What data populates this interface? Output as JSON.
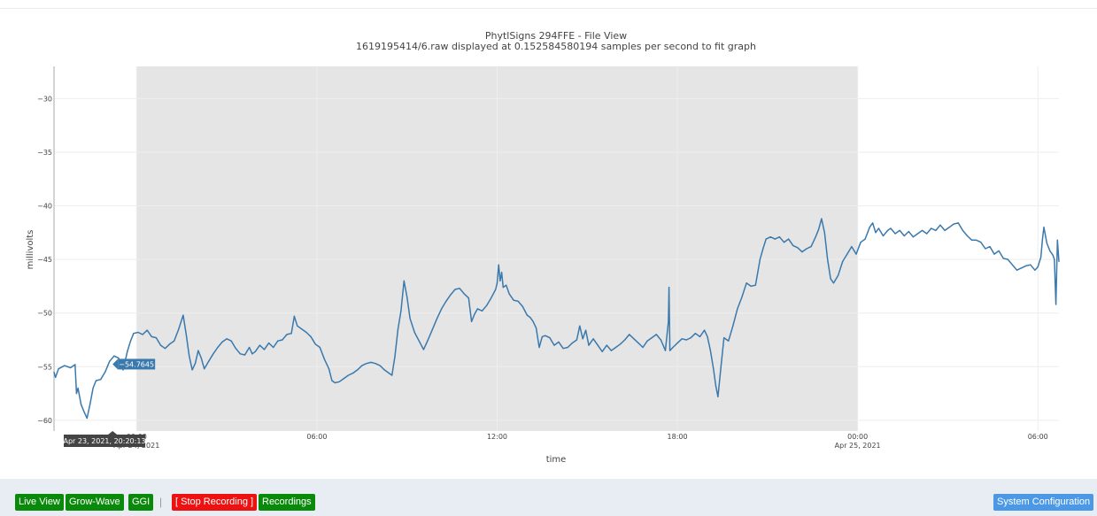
{
  "chart_data": {
    "type": "line",
    "title": "PhytlSigns 294FFE - File View",
    "subtitle": "1619195414/6.raw displayed at 0.152584580194 samples per second to fit graph",
    "xlabel": "time",
    "ylabel": "millivolts",
    "ylim": [
      -61,
      -27
    ],
    "y_ticks": [
      -30,
      -35,
      -40,
      -45,
      -50,
      -55,
      -60
    ],
    "y_tick_labels": [
      "−30",
      "−35",
      "−40",
      "−45",
      "−50",
      "−55",
      "−60"
    ],
    "x_ticks": [
      {
        "hour": 0,
        "label": "00:00",
        "sublabel": "Apr 24, 2021"
      },
      {
        "hour": 6,
        "label": "06:00",
        "sublabel": ""
      },
      {
        "hour": 12,
        "label": "12:00",
        "sublabel": ""
      },
      {
        "hour": 18,
        "label": "18:00",
        "sublabel": ""
      },
      {
        "hour": 24,
        "label": "00:00",
        "sublabel": "Apr 25, 2021"
      },
      {
        "hour": 30,
        "label": "06:00",
        "sublabel": ""
      }
    ],
    "x_units": "hours relative to 00:00 Apr 24, 2021",
    "xlim": [
      -2.75,
      30.7
    ],
    "shaded_region": [
      0,
      24
    ],
    "grid": true,
    "series": [
      {
        "color": "#3a79ad",
        "points": [
          [
            -2.75,
            -55.5
          ],
          [
            -2.7,
            -56.0
          ],
          [
            -2.6,
            -55.2
          ],
          [
            -2.4,
            -54.9
          ],
          [
            -2.2,
            -55.1
          ],
          [
            -2.05,
            -54.8
          ],
          [
            -2.0,
            -57.5
          ],
          [
            -1.95,
            -57.0
          ],
          [
            -1.85,
            -58.5
          ],
          [
            -1.75,
            -59.2
          ],
          [
            -1.65,
            -59.8
          ],
          [
            -1.55,
            -58.5
          ],
          [
            -1.45,
            -57.0
          ],
          [
            -1.35,
            -56.3
          ],
          [
            -1.2,
            -56.2
          ],
          [
            -1.05,
            -55.5
          ],
          [
            -0.9,
            -54.5
          ],
          [
            -0.75,
            -54.0
          ],
          [
            -0.6,
            -54.2
          ],
          [
            -0.45,
            -55.3
          ],
          [
            -0.3,
            -53.5
          ],
          [
            -0.2,
            -52.6
          ],
          [
            -0.1,
            -51.9
          ],
          [
            0.05,
            -51.8
          ],
          [
            0.2,
            -52.0
          ],
          [
            0.35,
            -51.6
          ],
          [
            0.5,
            -52.2
          ],
          [
            0.65,
            -52.3
          ],
          [
            0.8,
            -53.0
          ],
          [
            0.95,
            -53.3
          ],
          [
            1.1,
            -52.9
          ],
          [
            1.25,
            -52.6
          ],
          [
            1.4,
            -51.5
          ],
          [
            1.55,
            -50.2
          ],
          [
            1.65,
            -52.0
          ],
          [
            1.75,
            -54.0
          ],
          [
            1.85,
            -55.3
          ],
          [
            1.95,
            -54.7
          ],
          [
            2.05,
            -53.5
          ],
          [
            2.15,
            -54.2
          ],
          [
            2.25,
            -55.2
          ],
          [
            2.4,
            -54.5
          ],
          [
            2.55,
            -53.8
          ],
          [
            2.7,
            -53.2
          ],
          [
            2.85,
            -52.7
          ],
          [
            3.0,
            -52.4
          ],
          [
            3.15,
            -52.6
          ],
          [
            3.3,
            -53.3
          ],
          [
            3.45,
            -53.8
          ],
          [
            3.6,
            -53.9
          ],
          [
            3.75,
            -53.2
          ],
          [
            3.85,
            -53.8
          ],
          [
            3.95,
            -53.6
          ],
          [
            4.1,
            -53.0
          ],
          [
            4.25,
            -53.4
          ],
          [
            4.4,
            -52.8
          ],
          [
            4.55,
            -53.2
          ],
          [
            4.7,
            -52.6
          ],
          [
            4.85,
            -52.5
          ],
          [
            5.0,
            -52.0
          ],
          [
            5.15,
            -51.9
          ],
          [
            5.25,
            -50.3
          ],
          [
            5.35,
            -51.2
          ],
          [
            5.5,
            -51.5
          ],
          [
            5.65,
            -51.8
          ],
          [
            5.8,
            -52.2
          ],
          [
            5.95,
            -52.9
          ],
          [
            6.1,
            -53.2
          ],
          [
            6.25,
            -54.3
          ],
          [
            6.4,
            -55.2
          ],
          [
            6.5,
            -56.3
          ],
          [
            6.6,
            -56.5
          ],
          [
            6.75,
            -56.4
          ],
          [
            6.9,
            -56.1
          ],
          [
            7.05,
            -55.8
          ],
          [
            7.2,
            -55.6
          ],
          [
            7.35,
            -55.3
          ],
          [
            7.5,
            -54.9
          ],
          [
            7.65,
            -54.7
          ],
          [
            7.8,
            -54.6
          ],
          [
            7.95,
            -54.7
          ],
          [
            8.1,
            -54.9
          ],
          [
            8.25,
            -55.3
          ],
          [
            8.4,
            -55.6
          ],
          [
            8.5,
            -55.8
          ],
          [
            8.6,
            -54.0
          ],
          [
            8.7,
            -51.5
          ],
          [
            8.8,
            -49.8
          ],
          [
            8.9,
            -47.0
          ],
          [
            9.0,
            -48.5
          ],
          [
            9.1,
            -50.5
          ],
          [
            9.25,
            -51.8
          ],
          [
            9.4,
            -52.6
          ],
          [
            9.55,
            -53.4
          ],
          [
            9.7,
            -52.5
          ],
          [
            9.85,
            -51.5
          ],
          [
            10.0,
            -50.5
          ],
          [
            10.15,
            -49.6
          ],
          [
            10.3,
            -48.9
          ],
          [
            10.45,
            -48.3
          ],
          [
            10.6,
            -47.8
          ],
          [
            10.75,
            -47.7
          ],
          [
            10.9,
            -48.2
          ],
          [
            11.05,
            -48.6
          ],
          [
            11.15,
            -50.8
          ],
          [
            11.25,
            -50.1
          ],
          [
            11.35,
            -49.6
          ],
          [
            11.5,
            -49.8
          ],
          [
            11.65,
            -49.3
          ],
          [
            11.8,
            -48.6
          ],
          [
            11.95,
            -47.8
          ],
          [
            12.0,
            -47.2
          ],
          [
            12.05,
            -45.5
          ],
          [
            12.1,
            -47.0
          ],
          [
            12.15,
            -46.2
          ],
          [
            12.2,
            -47.6
          ],
          [
            12.3,
            -47.4
          ],
          [
            12.4,
            -48.2
          ],
          [
            12.55,
            -48.8
          ],
          [
            12.7,
            -48.9
          ],
          [
            12.85,
            -49.4
          ],
          [
            13.0,
            -50.2
          ],
          [
            13.1,
            -50.4
          ],
          [
            13.2,
            -50.8
          ],
          [
            13.3,
            -51.4
          ],
          [
            13.4,
            -53.2
          ],
          [
            13.5,
            -52.2
          ],
          [
            13.6,
            -52.1
          ],
          [
            13.75,
            -52.3
          ],
          [
            13.9,
            -53.0
          ],
          [
            14.05,
            -52.7
          ],
          [
            14.2,
            -53.3
          ],
          [
            14.35,
            -53.2
          ],
          [
            14.5,
            -52.8
          ],
          [
            14.65,
            -52.5
          ],
          [
            14.75,
            -51.2
          ],
          [
            14.85,
            -52.4
          ],
          [
            14.95,
            -51.6
          ],
          [
            15.05,
            -53.0
          ],
          [
            15.2,
            -52.4
          ],
          [
            15.35,
            -53.0
          ],
          [
            15.5,
            -53.6
          ],
          [
            15.65,
            -53.0
          ],
          [
            15.8,
            -53.5
          ],
          [
            15.95,
            -53.2
          ],
          [
            16.1,
            -52.9
          ],
          [
            16.25,
            -52.5
          ],
          [
            16.4,
            -52.0
          ],
          [
            16.55,
            -52.4
          ],
          [
            16.7,
            -52.8
          ],
          [
            16.85,
            -53.2
          ],
          [
            17.0,
            -52.6
          ],
          [
            17.15,
            -52.3
          ],
          [
            17.3,
            -52.0
          ],
          [
            17.45,
            -52.5
          ],
          [
            17.6,
            -53.5
          ],
          [
            17.7,
            -50.8
          ],
          [
            17.72,
            -47.6
          ],
          [
            17.75,
            -53.5
          ],
          [
            17.85,
            -53.2
          ],
          [
            18.0,
            -52.8
          ],
          [
            18.15,
            -52.4
          ],
          [
            18.3,
            -52.5
          ],
          [
            18.45,
            -52.3
          ],
          [
            18.6,
            -51.9
          ],
          [
            18.75,
            -52.2
          ],
          [
            18.9,
            -51.6
          ],
          [
            19.0,
            -52.2
          ],
          [
            19.1,
            -53.5
          ],
          [
            19.2,
            -55.2
          ],
          [
            19.28,
            -56.8
          ],
          [
            19.35,
            -57.8
          ],
          [
            19.45,
            -55.0
          ],
          [
            19.55,
            -52.3
          ],
          [
            19.7,
            -52.6
          ],
          [
            19.85,
            -51.2
          ],
          [
            20.0,
            -49.6
          ],
          [
            20.15,
            -48.5
          ],
          [
            20.3,
            -47.2
          ],
          [
            20.45,
            -47.5
          ],
          [
            20.6,
            -47.4
          ],
          [
            20.75,
            -45.0
          ],
          [
            20.85,
            -44.0
          ],
          [
            20.95,
            -43.1
          ],
          [
            21.1,
            -42.9
          ],
          [
            21.25,
            -43.1
          ],
          [
            21.4,
            -42.9
          ],
          [
            21.55,
            -43.4
          ],
          [
            21.7,
            -43.1
          ],
          [
            21.85,
            -43.7
          ],
          [
            22.0,
            -43.9
          ],
          [
            22.15,
            -44.3
          ],
          [
            22.3,
            -44.0
          ],
          [
            22.45,
            -43.8
          ],
          [
            22.6,
            -42.9
          ],
          [
            22.7,
            -42.2
          ],
          [
            22.8,
            -41.2
          ],
          [
            22.9,
            -42.5
          ],
          [
            23.0,
            -45.0
          ],
          [
            23.1,
            -46.8
          ],
          [
            23.2,
            -47.2
          ],
          [
            23.35,
            -46.5
          ],
          [
            23.5,
            -45.2
          ],
          [
            23.65,
            -44.5
          ],
          [
            23.8,
            -43.8
          ],
          [
            23.95,
            -44.5
          ],
          [
            24.1,
            -43.4
          ],
          [
            24.25,
            -43.1
          ],
          [
            24.4,
            -42.0
          ],
          [
            24.5,
            -41.6
          ],
          [
            24.6,
            -42.5
          ],
          [
            24.7,
            -42.1
          ],
          [
            24.85,
            -42.8
          ],
          [
            25.0,
            -42.3
          ],
          [
            25.1,
            -42.1
          ],
          [
            25.25,
            -42.6
          ],
          [
            25.4,
            -42.3
          ],
          [
            25.55,
            -42.8
          ],
          [
            25.7,
            -42.4
          ],
          [
            25.85,
            -42.9
          ],
          [
            26.0,
            -42.6
          ],
          [
            26.15,
            -42.3
          ],
          [
            26.3,
            -42.6
          ],
          [
            26.45,
            -42.1
          ],
          [
            26.6,
            -42.3
          ],
          [
            26.75,
            -41.8
          ],
          [
            26.9,
            -42.3
          ],
          [
            27.05,
            -42.0
          ],
          [
            27.2,
            -41.7
          ],
          [
            27.35,
            -41.6
          ],
          [
            27.5,
            -42.3
          ],
          [
            27.65,
            -42.8
          ],
          [
            27.8,
            -43.2
          ],
          [
            27.95,
            -43.2
          ],
          [
            28.1,
            -43.4
          ],
          [
            28.25,
            -44.0
          ],
          [
            28.4,
            -43.8
          ],
          [
            28.55,
            -44.5
          ],
          [
            28.7,
            -44.2
          ],
          [
            28.85,
            -44.9
          ],
          [
            29.0,
            -45.0
          ],
          [
            29.15,
            -45.5
          ],
          [
            29.3,
            -46.0
          ],
          [
            29.45,
            -45.8
          ],
          [
            29.6,
            -45.6
          ],
          [
            29.75,
            -45.5
          ],
          [
            29.9,
            -46.0
          ],
          [
            30.0,
            -45.7
          ],
          [
            30.1,
            -44.8
          ],
          [
            30.15,
            -43.2
          ],
          [
            30.2,
            -42.0
          ],
          [
            30.3,
            -43.5
          ],
          [
            30.4,
            -44.2
          ],
          [
            30.5,
            -44.6
          ],
          [
            30.55,
            -45.0
          ],
          [
            30.6,
            -49.2
          ],
          [
            30.65,
            -43.2
          ],
          [
            30.7,
            -45.2
          ]
        ]
      }
    ],
    "hover": {
      "value_label": "−54.7645",
      "x_label": "Apr 23, 2021, 20:20:13",
      "hour": -0.8,
      "value": -54.7645
    }
  },
  "toolbar": {
    "live_view": "Live View",
    "grow_wave": "Grow-Wave",
    "ggi": "GGI",
    "separator": "|",
    "stop_recording": "[ Stop Recording ]",
    "recordings": "Recordings",
    "system_configuration": "System Configuration"
  },
  "colors": {
    "green": "#0a8a0a",
    "red": "#ee1111",
    "blue": "#4a98e6",
    "line": "#3a79ad",
    "shade": "#e5e5e5",
    "toolbar_bg": "#e7edf2"
  }
}
